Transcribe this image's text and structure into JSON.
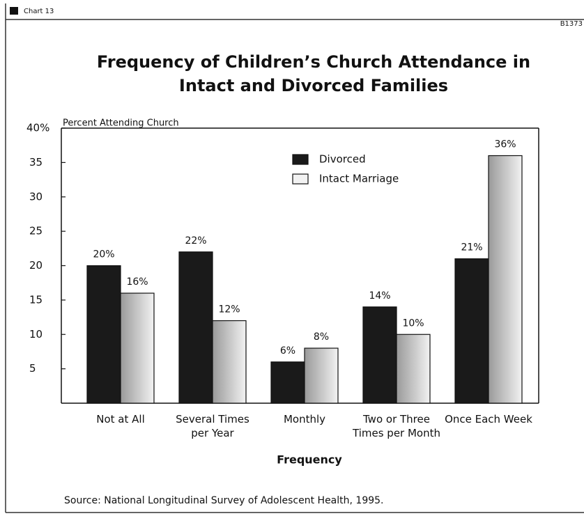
{
  "header": {
    "left": "Chart 13",
    "right": "B1373"
  },
  "chart_data": {
    "type": "bar",
    "title": "Frequency of Children’s Church Attendance in Intact and Divorced Families",
    "y_label": "Percent Attending Church",
    "x_label": "Frequency",
    "source": "Source: National Longitudinal Survey of Adolescent Health, 1995.",
    "categories": [
      "Not at All",
      "Several Times per Year",
      "Monthly",
      "Two or Three Times per Month",
      "Once Each Week"
    ],
    "series": [
      {
        "name": "Divorced",
        "color": "#1a1a1a",
        "values": [
          20,
          22,
          6,
          14,
          21
        ],
        "value_labels": [
          "20%",
          "22%",
          "6%",
          "14%",
          "21%"
        ]
      },
      {
        "name": "Intact Marriage",
        "color": "#f2f2f2",
        "values": [
          16,
          12,
          8,
          10,
          36
        ],
        "value_labels": [
          "16%",
          "12%",
          "8%",
          "10%",
          "36%"
        ]
      }
    ],
    "ylim": [
      0,
      40
    ],
    "yticks": [
      5,
      10,
      15,
      20,
      25,
      30,
      35,
      {
        "value": 40,
        "label": "40%"
      }
    ],
    "legend": "top-right"
  }
}
